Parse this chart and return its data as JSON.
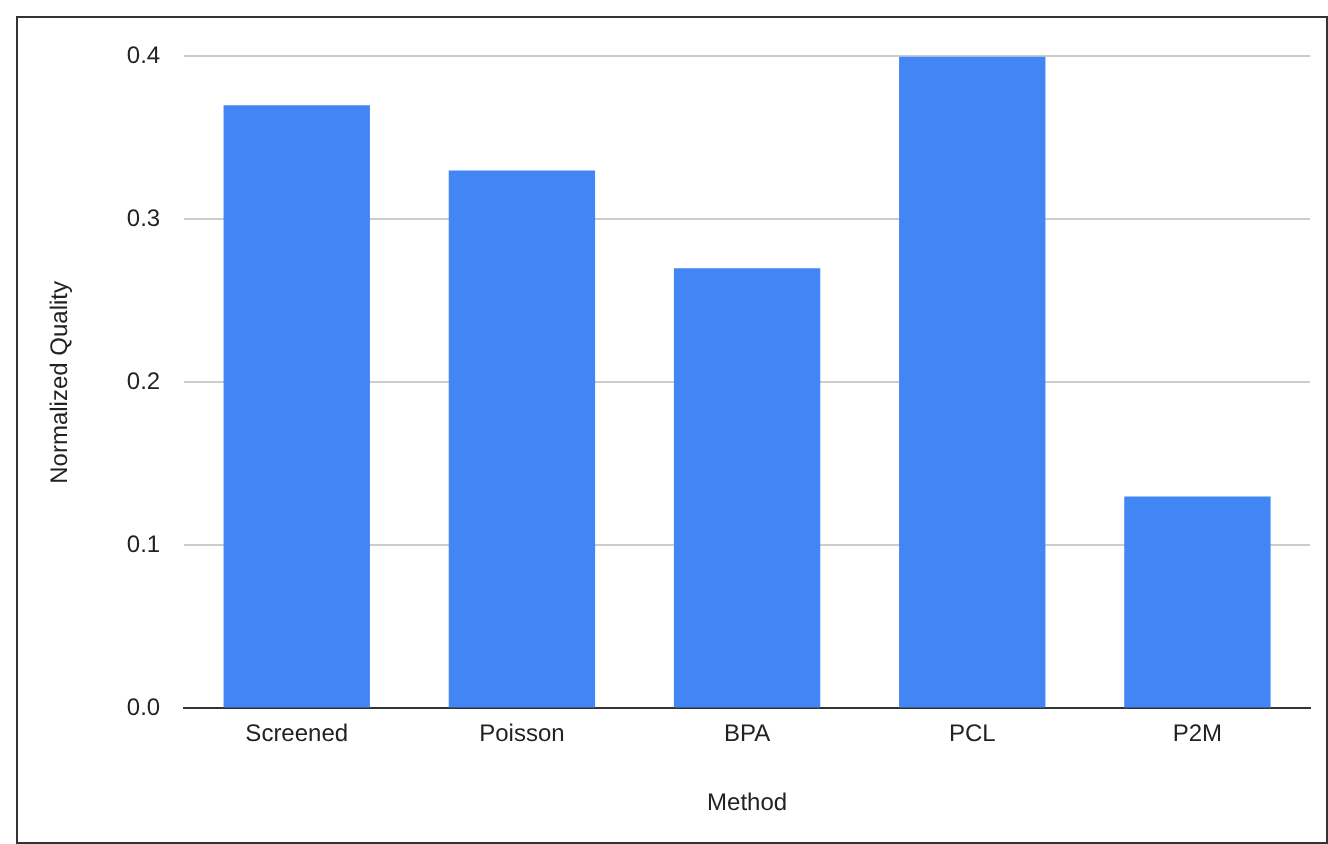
{
  "chart_data": {
    "type": "bar",
    "xlabel": "Method",
    "ylabel": "Normalized Quality",
    "categories": [
      "Screened",
      "Poisson",
      "BPA",
      "PCL",
      "P2M"
    ],
    "values": [
      0.37,
      0.33,
      0.27,
      0.4,
      0.13
    ],
    "color": "#4285f4",
    "ylim": [
      0,
      0.4
    ],
    "yticks": [
      {
        "value": 0,
        "label": "0.0"
      },
      {
        "value": 0.1,
        "label": "0.1"
      },
      {
        "value": 0.2,
        "label": "0.2"
      },
      {
        "value": 0.3,
        "label": "0.3"
      },
      {
        "value": 0.4,
        "label": "0.4"
      }
    ],
    "grid": "y"
  }
}
